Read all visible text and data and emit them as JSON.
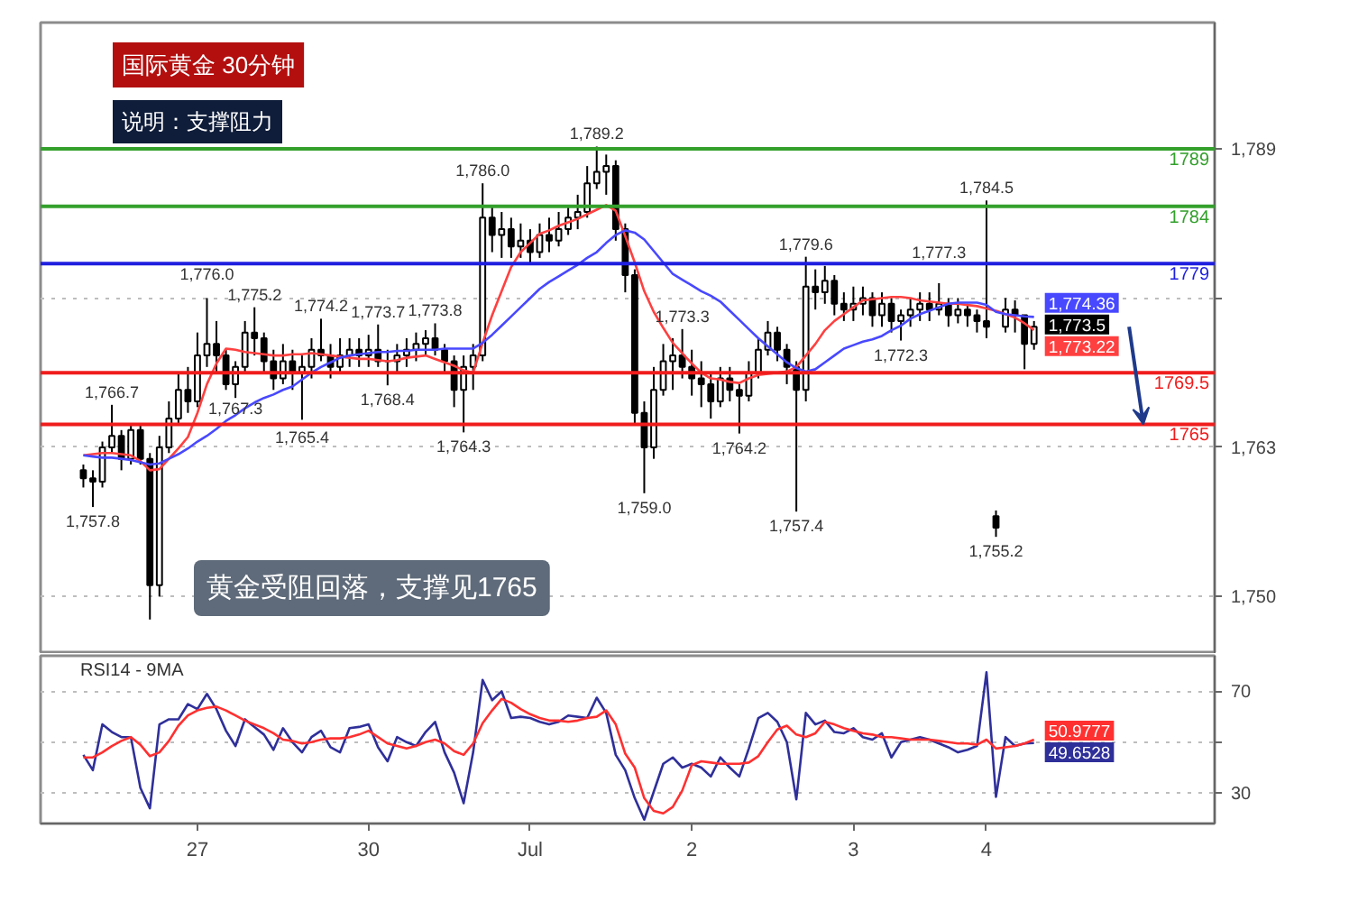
{
  "chart_data": [
    {
      "type": "candlestick",
      "title": "国际黄金 30分钟",
      "subtitle": "说明：支撑阻力",
      "categories": [
        null,
        null,
        null,
        null,
        null,
        null,
        null,
        null,
        null,
        null,
        null,
        null,
        null,
        null,
        null,
        null,
        null,
        null,
        null,
        null,
        null,
        null,
        null,
        null,
        null,
        null,
        null,
        null,
        null,
        null,
        null,
        null,
        null,
        null,
        null,
        null,
        null,
        null,
        null,
        null,
        null,
        null,
        null,
        null,
        null,
        null,
        null,
        null,
        null,
        null,
        null,
        null,
        null,
        null,
        null,
        null,
        null,
        null,
        null,
        null,
        null,
        null,
        null,
        null,
        null,
        null,
        null,
        null,
        null,
        null,
        null,
        null,
        null,
        null,
        null,
        null,
        null,
        null,
        null,
        null,
        null,
        null,
        null,
        null,
        null,
        null,
        null,
        null,
        null,
        null,
        null,
        null,
        null,
        null,
        null,
        null,
        null,
        null,
        null,
        null,
        null
      ],
      "ohlc": [
        [
          1761,
          1761.5,
          1759.5,
          1760.3
        ],
        [
          1760.3,
          1761,
          1757.8,
          1760
        ],
        [
          1760,
          1763.5,
          1759.5,
          1763
        ],
        [
          1763,
          1766.7,
          1762.5,
          1764
        ],
        [
          1764,
          1764.5,
          1761,
          1762
        ],
        [
          1762,
          1765,
          1761.5,
          1764.5
        ],
        [
          1764.5,
          1765,
          1761.5,
          1762
        ],
        [
          1762,
          1762.5,
          1748,
          1751
        ],
        [
          1751,
          1764,
          1750,
          1763
        ],
        [
          1763,
          1767,
          1762.5,
          1765.5
        ],
        [
          1765.5,
          1769.5,
          1765,
          1768
        ],
        [
          1768,
          1770,
          1766,
          1767
        ],
        [
          1767,
          1773,
          1766.5,
          1771
        ],
        [
          1771,
          1776,
          1770,
          1772
        ],
        [
          1772,
          1774,
          1769.5,
          1771
        ],
        [
          1771,
          1771.5,
          1768,
          1768.5
        ],
        [
          1768.5,
          1770.5,
          1767.3,
          1770
        ],
        [
          1770,
          1774,
          1769.5,
          1773
        ],
        [
          1773,
          1775.2,
          1771,
          1772.5
        ],
        [
          1772.5,
          1773,
          1769.5,
          1770.5
        ],
        [
          1770.5,
          1771.5,
          1768,
          1769
        ],
        [
          1769,
          1772,
          1768.5,
          1770.5
        ],
        [
          1770.5,
          1771.5,
          1768,
          1769.5
        ],
        [
          1769.5,
          1771,
          1765.4,
          1770
        ],
        [
          1770,
          1772.5,
          1769,
          1771.5
        ],
        [
          1771.5,
          1774.2,
          1770.5,
          1771
        ],
        [
          1771,
          1772,
          1769,
          1770
        ],
        [
          1770,
          1772.5,
          1769.5,
          1771
        ],
        [
          1771,
          1772.5,
          1770,
          1771.5
        ],
        [
          1771.5,
          1772.5,
          1770,
          1771
        ],
        [
          1771,
          1772.8,
          1770,
          1771.5
        ],
        [
          1771.5,
          1773.7,
          1770,
          1770.5
        ],
        [
          1770.5,
          1771.5,
          1768.4,
          1770.5
        ],
        [
          1770.5,
          1772,
          1769.5,
          1771
        ],
        [
          1771,
          1772.5,
          1770,
          1771.5
        ],
        [
          1771.5,
          1773,
          1770.5,
          1772
        ],
        [
          1772,
          1773.2,
          1771,
          1772.5
        ],
        [
          1772.5,
          1773.8,
          1771,
          1771.5
        ],
        [
          1771.5,
          1772,
          1769.5,
          1770.5
        ],
        [
          1770.5,
          1771,
          1766.5,
          1768
        ],
        [
          1768,
          1771,
          1764.3,
          1770
        ],
        [
          1770,
          1772,
          1768,
          1771
        ],
        [
          1771,
          1786,
          1770.5,
          1783
        ],
        [
          1783,
          1784,
          1780,
          1781.5
        ],
        [
          1781.5,
          1783.5,
          1779.5,
          1782
        ],
        [
          1782,
          1783,
          1779.5,
          1780.5
        ],
        [
          1780.5,
          1782.5,
          1779.5,
          1781
        ],
        [
          1781,
          1782,
          1779,
          1780
        ],
        [
          1780,
          1782.5,
          1779.5,
          1781.5
        ],
        [
          1781.5,
          1783,
          1780,
          1781
        ],
        [
          1781,
          1783.5,
          1780.5,
          1782
        ],
        [
          1782,
          1784,
          1781.5,
          1783
        ],
        [
          1783,
          1785,
          1782,
          1783.5
        ],
        [
          1783.5,
          1787.5,
          1783,
          1786
        ],
        [
          1786,
          1789.2,
          1785.5,
          1787
        ],
        [
          1787,
          1788.5,
          1785,
          1787.5
        ],
        [
          1787.5,
          1788,
          1781,
          1782
        ],
        [
          1782,
          1782.5,
          1776.5,
          1778
        ],
        [
          1778,
          1778.5,
          1765,
          1766
        ],
        [
          1766,
          1767,
          1759,
          1763
        ],
        [
          1763,
          1770,
          1762,
          1768
        ],
        [
          1768,
          1772,
          1767.5,
          1770.5
        ],
        [
          1770.5,
          1772.5,
          1768,
          1771
        ],
        [
          1771,
          1773.3,
          1769,
          1770
        ],
        [
          1770,
          1771.5,
          1767.5,
          1769
        ],
        [
          1769,
          1770.5,
          1766.5,
          1768.5
        ],
        [
          1768.5,
          1769.5,
          1765.5,
          1767
        ],
        [
          1767,
          1770,
          1766.5,
          1769
        ],
        [
          1769,
          1770,
          1767,
          1768
        ],
        [
          1768,
          1768.5,
          1764.2,
          1767.5
        ],
        [
          1767.5,
          1770.5,
          1767,
          1769.5
        ],
        [
          1769.5,
          1772.5,
          1769,
          1771.5
        ],
        [
          1771.5,
          1774,
          1771,
          1773
        ],
        [
          1773,
          1773.5,
          1770.5,
          1771.5
        ],
        [
          1771.5,
          1772,
          1768.5,
          1770
        ],
        [
          1770,
          1770.5,
          1757.4,
          1768
        ],
        [
          1768,
          1779.6,
          1767,
          1777
        ],
        [
          1777,
          1778.5,
          1775,
          1776.5
        ],
        [
          1776.5,
          1778.8,
          1775.5,
          1777.5
        ],
        [
          1777.5,
          1778,
          1774.5,
          1775.5
        ],
        [
          1775.5,
          1776.5,
          1774,
          1775
        ],
        [
          1775,
          1777,
          1774,
          1775.5
        ],
        [
          1775.5,
          1777,
          1774.5,
          1776
        ],
        [
          1776,
          1776.5,
          1773.5,
          1774.5
        ],
        [
          1774.5,
          1776.5,
          1773.5,
          1775.5
        ],
        [
          1775.5,
          1776,
          1773,
          1774
        ],
        [
          1774,
          1775,
          1772.3,
          1774.5
        ],
        [
          1774.5,
          1776,
          1773.5,
          1775
        ],
        [
          1775,
          1776.5,
          1774,
          1775.5
        ],
        [
          1775.5,
          1776.5,
          1774,
          1775
        ],
        [
          1775,
          1777.3,
          1774.5,
          1775.5
        ],
        [
          1775.5,
          1776,
          1773.5,
          1774.5
        ],
        [
          1774.5,
          1776,
          1773.8,
          1775
        ],
        [
          1775,
          1775.5,
          1773.5,
          1774.5
        ],
        [
          1774.5,
          1775,
          1773,
          1774
        ],
        [
          1774,
          1784.5,
          1772.5,
          1773.5
        ],
        [
          1757,
          1757.5,
          1755.2,
          1756
        ],
        [
          1773.5,
          1776,
          1773,
          1775
        ],
        [
          1775,
          1775.8,
          1773,
          1774.5
        ],
        [
          1774.5,
          1774.5,
          1769.8,
          1772
        ],
        [
          1772,
          1774,
          1771.5,
          1773.5
        ]
      ],
      "color": "#000000",
      "value_labels": [
        null,
        null,
        null,
        null,
        null,
        null,
        null,
        null,
        null,
        null,
        null,
        null,
        null,
        null,
        null,
        null,
        null,
        null,
        null,
        null,
        null,
        null,
        null,
        null,
        null,
        null,
        null,
        null,
        null,
        null,
        null,
        null,
        null,
        null,
        null,
        null,
        null,
        null,
        null,
        null,
        null,
        null,
        null,
        null,
        null,
        null,
        null,
        null,
        null,
        null,
        null,
        null,
        null,
        null,
        null,
        null,
        null,
        null,
        null,
        null,
        null,
        null,
        null,
        null,
        null,
        null,
        null,
        null,
        null,
        null,
        null,
        null,
        null,
        null,
        null,
        null,
        null,
        null,
        null,
        null,
        null,
        null,
        null,
        null,
        null,
        null,
        null,
        null,
        null,
        null,
        null,
        null,
        null,
        null,
        null,
        null,
        null,
        null,
        null,
        null,
        "1,773.5"
      ],
      "series": [
        {
          "type": "line",
          "color": "#ff4040",
          "values": [
            1762.3,
            1762.4,
            1762.5,
            1762.5,
            1762.4,
            1762.3,
            1761.8,
            1761.0,
            1761.1,
            1762.0,
            1762.9,
            1763.9,
            1766.0,
            1768.5,
            1770.3,
            1771.6,
            1771.5,
            1771.3,
            1771.2,
            1771.1,
            1771.0,
            1771.0,
            1771.1,
            1771.1,
            1771.2,
            1771.1,
            1771.0,
            1770.9,
            1770.8,
            1770.7,
            1770.7,
            1770.6,
            1770.5,
            1770.6,
            1770.8,
            1770.9,
            1771.0,
            1770.7,
            1770.4,
            1770.1,
            1769.7,
            1769.5,
            1772.1,
            1774.5,
            1776.6,
            1778.7,
            1780.0,
            1780.8,
            1781.6,
            1781.9,
            1782.3,
            1782.6,
            1782.9,
            1783.3,
            1783.7,
            1784.1,
            1783.6,
            1781.4,
            1779.1,
            1776.6,
            1774.8,
            1773.4,
            1772.1,
            1771.2,
            1770.3,
            1769.5,
            1769.0,
            1768.9,
            1768.7,
            1768.6,
            1769.0,
            1769.3,
            1769.4,
            1769.5,
            1769.6,
            1770.0,
            1771.0,
            1772.0,
            1773.2,
            1774.0,
            1774.6,
            1775.2,
            1775.8,
            1775.9,
            1776.0,
            1776.1,
            1776.1,
            1776.0,
            1775.8,
            1775.7,
            1775.6,
            1775.5,
            1775.5,
            1775.4,
            1775.3,
            1775.1,
            1774.9,
            1774.6,
            1774.3,
            1773.8,
            1773.22
          ],
          "value_labels": [
            null,
            null,
            null,
            null,
            null,
            null,
            null,
            null,
            null,
            null,
            null,
            null,
            null,
            null,
            null,
            null,
            null,
            null,
            null,
            null,
            null,
            null,
            null,
            null,
            null,
            null,
            null,
            null,
            null,
            null,
            null,
            null,
            null,
            null,
            null,
            null,
            null,
            null,
            null,
            null,
            null,
            null,
            null,
            null,
            null,
            null,
            null,
            null,
            null,
            null,
            null,
            null,
            null,
            null,
            null,
            null,
            null,
            null,
            null,
            null,
            null,
            null,
            null,
            null,
            null,
            null,
            null,
            null,
            null,
            null,
            null,
            null,
            null,
            null,
            null,
            null,
            null,
            null,
            null,
            null,
            null,
            null,
            null,
            null,
            null,
            null,
            null,
            null,
            null,
            null,
            null,
            null,
            null,
            null,
            null,
            null,
            null,
            null,
            null,
            null,
            "1,773.22"
          ]
        },
        {
          "type": "line",
          "color": "#4848ff",
          "values": [
            1762.3,
            1762.2,
            1762.1,
            1762.1,
            1762.0,
            1761.9,
            1761.7,
            1761.5,
            1761.6,
            1762.0,
            1762.4,
            1762.9,
            1763.5,
            1764.0,
            1764.6,
            1765.3,
            1765.8,
            1766.4,
            1766.9,
            1767.3,
            1767.6,
            1768.0,
            1768.3,
            1768.9,
            1769.5,
            1770.0,
            1770.4,
            1770.8,
            1771.0,
            1771.1,
            1771.2,
            1771.3,
            1771.3,
            1771.4,
            1771.4,
            1771.5,
            1771.5,
            1771.5,
            1771.6,
            1771.6,
            1771.6,
            1771.6,
            1772.1,
            1772.8,
            1773.6,
            1774.4,
            1775.2,
            1776.0,
            1776.8,
            1777.4,
            1777.9,
            1778.4,
            1778.9,
            1779.5,
            1780.0,
            1780.8,
            1781.5,
            1781.9,
            1781.7,
            1781.1,
            1780.1,
            1779.1,
            1778.1,
            1777.6,
            1777.1,
            1776.6,
            1776.2,
            1775.7,
            1774.9,
            1774.1,
            1773.3,
            1772.5,
            1771.8,
            1771.1,
            1770.4,
            1769.9,
            1769.6,
            1769.8,
            1770.4,
            1771.0,
            1771.6,
            1771.9,
            1772.2,
            1772.4,
            1772.7,
            1773.2,
            1773.6,
            1774.2,
            1774.6,
            1774.9,
            1775.2,
            1775.5,
            1775.6,
            1775.6,
            1775.6,
            1775.4,
            1774.8,
            1774.6,
            1774.5,
            1774.4,
            1774.36
          ],
          "value_labels": [
            null,
            null,
            null,
            null,
            null,
            null,
            null,
            null,
            null,
            null,
            null,
            null,
            null,
            null,
            null,
            null,
            null,
            null,
            null,
            null,
            null,
            null,
            null,
            null,
            null,
            null,
            null,
            null,
            null,
            null,
            null,
            null,
            null,
            null,
            null,
            null,
            null,
            null,
            null,
            null,
            null,
            null,
            null,
            null,
            null,
            null,
            null,
            null,
            null,
            null,
            null,
            null,
            null,
            null,
            null,
            null,
            null,
            null,
            null,
            null,
            null,
            null,
            null,
            null,
            null,
            null,
            null,
            null,
            null,
            null,
            null,
            null,
            null,
            null,
            null,
            null,
            null,
            null,
            null,
            null,
            null,
            null,
            null,
            null,
            null,
            null,
            null,
            null,
            null,
            null,
            null,
            null,
            null,
            null,
            null,
            null,
            null,
            null,
            null,
            null,
            "1,774.36"
          ]
        }
      ],
      "ylim": [
        1745,
        1800
      ],
      "yticks": [
        {
          "value": 1750,
          "label": "1,750"
        },
        {
          "value": 1763,
          "label": "1,763"
        },
        {
          "value": 1776,
          "label": null
        },
        {
          "value": 1789,
          "label": "1,789"
        }
      ],
      "grid": "y",
      "ref_lines": [
        {
          "axis": "y",
          "value": 1789,
          "label": "1789",
          "color": "#33a02c"
        },
        {
          "axis": "y",
          "value": 1784,
          "label": "1784",
          "color": "#33a02c"
        },
        {
          "axis": "y",
          "value": 1779,
          "label": "1779",
          "color": "#1f1fe0"
        },
        {
          "axis": "y",
          "value": 1769.5,
          "label": "1769.5",
          "color": "#f01c1c"
        },
        {
          "axis": "y",
          "value": 1765,
          "label": "1765",
          "color": "#f01c1c"
        }
      ],
      "annotations": [
        {
          "text": "1,757.8",
          "y": 1757.8
        },
        {
          "text": "1,766.7",
          "y": 1766.7
        },
        {
          "text": "1,776.0",
          "y": 1776
        },
        {
          "text": "1,767.3",
          "y": 1767.3
        },
        {
          "text": "1,775.2",
          "y": 1775.2
        },
        {
          "text": "1,765.4",
          "y": 1765.4
        },
        {
          "text": "1,774.2",
          "y": 1774.2
        },
        {
          "text": "1,773.7",
          "y": 1773.7
        },
        {
          "text": "1,768.4",
          "y": 1768.4
        },
        {
          "text": "1,773.8",
          "y": 1773.8
        },
        {
          "text": "1,764.3",
          "y": 1764.3
        },
        {
          "text": "1,786.0",
          "y": 1786
        },
        {
          "text": "1,789.2",
          "y": 1789.2
        },
        {
          "text": "1,759.0",
          "y": 1759
        },
        {
          "text": "1,773.3",
          "y": 1773.3
        },
        {
          "text": "1,764.2",
          "y": 1764.2
        },
        {
          "text": "1,757.4",
          "y": 1757.4
        },
        {
          "text": "1,779.6",
          "y": 1779.6
        },
        {
          "text": "1,772.3",
          "y": 1772.3
        },
        {
          "text": "1,777.3",
          "y": 1777.3
        },
        {
          "text": "1,784.5",
          "y": 1784.5
        },
        {
          "text": "1,755.2",
          "y": 1755.2
        },
        "黄金受阻回落，支撑见1765"
      ]
    },
    {
      "type": "line",
      "title": "RSI14 - 9MA",
      "categories": [
        null,
        null,
        null,
        null,
        null,
        null,
        null,
        null,
        null,
        null,
        null,
        null,
        "27",
        null,
        null,
        null,
        null,
        null,
        null,
        null,
        null,
        null,
        null,
        null,
        null,
        null,
        null,
        null,
        null,
        null,
        "30",
        null,
        null,
        null,
        null,
        null,
        null,
        null,
        null,
        null,
        null,
        null,
        null,
        null,
        null,
        null,
        null,
        "Jul",
        null,
        null,
        null,
        null,
        null,
        null,
        null,
        null,
        null,
        null,
        null,
        null,
        null,
        null,
        null,
        null,
        "2",
        null,
        null,
        null,
        null,
        null,
        null,
        null,
        null,
        null,
        null,
        null,
        null,
        null,
        null,
        null,
        null,
        "3",
        null,
        null,
        null,
        null,
        null,
        null,
        null,
        null,
        null,
        null,
        null,
        null,
        null,
        "4",
        null,
        null,
        null,
        null,
        null
      ],
      "series": [
        {
          "color": "#2f2f9a",
          "values": [
            45,
            39,
            57,
            54,
            52,
            52,
            32,
            24,
            57,
            59,
            59,
            65,
            63,
            69,
            63,
            54.5,
            48.5,
            59,
            56,
            53,
            47,
            55.5,
            50,
            46,
            52,
            54.5,
            48,
            46,
            55.5,
            56,
            57,
            48,
            42.5,
            52,
            50,
            48.5,
            54,
            58,
            46,
            38,
            26,
            46,
            74.5,
            66.5,
            70,
            59.5,
            60,
            59.5,
            58,
            57,
            58,
            60.5,
            60,
            59.5,
            67.5,
            61.5,
            45,
            39,
            28,
            19.5,
            30.5,
            41.5,
            44,
            40,
            41.5,
            40,
            36.5,
            44,
            40,
            36.5,
            47.5,
            59.5,
            61.5,
            58,
            50,
            27.5,
            61.5,
            57,
            58.5,
            54,
            53.5,
            55.5,
            52,
            51,
            53.5,
            44,
            50,
            51,
            52,
            51,
            49.5,
            48,
            46,
            47,
            48.5,
            77.5,
            28.5,
            52,
            48.5,
            49.5,
            49.6528
          ],
          "value_labels": [
            null,
            null,
            null,
            null,
            null,
            null,
            null,
            null,
            null,
            null,
            null,
            null,
            null,
            null,
            null,
            null,
            null,
            null,
            null,
            null,
            null,
            null,
            null,
            null,
            null,
            null,
            null,
            null,
            null,
            null,
            null,
            null,
            null,
            null,
            null,
            null,
            null,
            null,
            null,
            null,
            null,
            null,
            null,
            null,
            null,
            null,
            null,
            null,
            null,
            null,
            null,
            null,
            null,
            null,
            null,
            null,
            null,
            null,
            null,
            null,
            null,
            null,
            null,
            null,
            null,
            null,
            null,
            null,
            null,
            null,
            null,
            null,
            null,
            null,
            null,
            null,
            null,
            null,
            null,
            null,
            null,
            null,
            null,
            null,
            null,
            null,
            null,
            null,
            null,
            null,
            null,
            null,
            null,
            null,
            null,
            null,
            null,
            null,
            null,
            null,
            "49.6528"
          ]
        },
        {
          "color": "#ff3030",
          "values": [
            44,
            44,
            46,
            48.5,
            50.5,
            52,
            49,
            44.5,
            46,
            50.5,
            56.5,
            60.5,
            62.5,
            63.5,
            64,
            62.5,
            60.5,
            58.5,
            57,
            55.5,
            53.5,
            51,
            50.5,
            49.5,
            50,
            51,
            51.5,
            51.5,
            52,
            53,
            54.5,
            52,
            49.5,
            48.5,
            47.5,
            48.5,
            50,
            51,
            49.5,
            46.5,
            45,
            49.5,
            57.5,
            62.5,
            67,
            65.5,
            63,
            61,
            59.5,
            58.5,
            58.5,
            58,
            58.5,
            59.5,
            60,
            62.5,
            57,
            45.5,
            40,
            28,
            23,
            22,
            24.5,
            31,
            41,
            42.5,
            42,
            41.5,
            41.5,
            41.5,
            42,
            44.5,
            50,
            55,
            56.5,
            53,
            52,
            53.5,
            58,
            57,
            55.5,
            54.5,
            53.5,
            53,
            52,
            52,
            51.5,
            51,
            51,
            51,
            50.5,
            50,
            49.5,
            49.5,
            49,
            51,
            47.5,
            48,
            48.5,
            49.5,
            50.9777
          ],
          "value_labels": [
            null,
            null,
            null,
            null,
            null,
            null,
            null,
            null,
            null,
            null,
            null,
            null,
            null,
            null,
            null,
            null,
            null,
            null,
            null,
            null,
            null,
            null,
            null,
            null,
            null,
            null,
            null,
            null,
            null,
            null,
            null,
            null,
            null,
            null,
            null,
            null,
            null,
            null,
            null,
            null,
            null,
            null,
            null,
            null,
            null,
            null,
            null,
            null,
            null,
            null,
            null,
            null,
            null,
            null,
            null,
            null,
            null,
            null,
            null,
            null,
            null,
            null,
            null,
            null,
            null,
            null,
            null,
            null,
            null,
            null,
            null,
            null,
            null,
            null,
            null,
            null,
            null,
            null,
            null,
            null,
            null,
            null,
            null,
            null,
            null,
            null,
            null,
            null,
            null,
            null,
            null,
            null,
            null,
            null,
            null,
            null,
            null,
            null,
            null,
            null,
            "50.9777"
          ]
        }
      ],
      "ylim": [
        18,
        84
      ],
      "yticks": [
        30,
        {
          "value": 50,
          "label": null
        },
        70
      ],
      "grid": "y"
    }
  ]
}
